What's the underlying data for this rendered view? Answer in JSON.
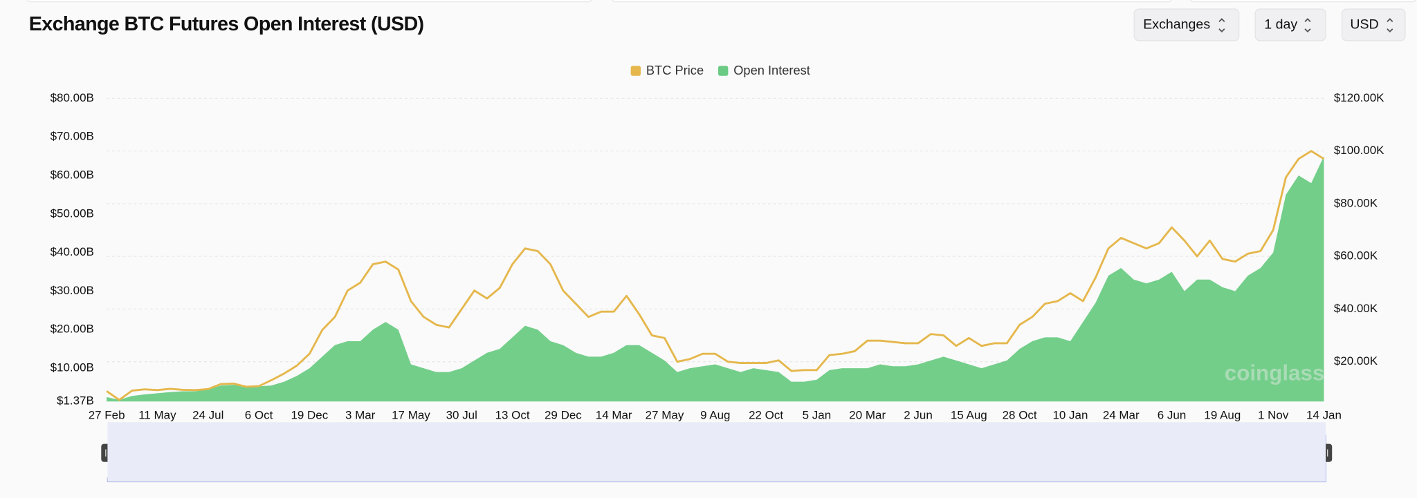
{
  "chart_data": {
    "type": "area-line",
    "title": "Exchange BTC Futures Open Interest (USD)",
    "controls": [
      "Exchanges",
      "1 day",
      "USD"
    ],
    "watermark": "coinglass",
    "categories": [
      "27 Feb",
      null,
      null,
      null,
      "11 May",
      null,
      null,
      null,
      "24 Jul",
      null,
      null,
      null,
      "6 Oct",
      null,
      null,
      null,
      "19 Dec",
      null,
      null,
      null,
      "3 Mar",
      null,
      null,
      null,
      "17 May",
      null,
      null,
      null,
      "30 Jul",
      null,
      null,
      null,
      "13 Oct",
      null,
      null,
      null,
      "29 Dec",
      null,
      null,
      null,
      "14 Mar",
      null,
      null,
      null,
      "27 May",
      null,
      null,
      null,
      "9 Aug",
      null,
      null,
      null,
      "22 Oct",
      null,
      null,
      null,
      "5 Jan",
      null,
      null,
      null,
      "20 Mar",
      null,
      null,
      null,
      "2 Jun",
      null,
      null,
      null,
      "15 Aug",
      null,
      null,
      null,
      "28 Oct",
      null,
      null,
      null,
      "10 Jan",
      null,
      null,
      null,
      "24 Mar",
      null,
      null,
      null,
      "6 Jun",
      null,
      null,
      null,
      "19 Aug",
      null,
      null,
      null,
      "1 Nov",
      null,
      null,
      null,
      "14 Jan"
    ],
    "series": [
      {
        "name": "BTC Price",
        "color": "#e5b74c",
        "axis": "y2",
        "kind": "line",
        "values": [
          8.8,
          5.5,
          9,
          9.5,
          9.2,
          9.7,
          9.3,
          9.2,
          9.6,
          11.5,
          11.7,
          10.5,
          10.7,
          13,
          15.5,
          18.5,
          23,
          32,
          37,
          47,
          50,
          57,
          58,
          55,
          43,
          37,
          34,
          33,
          40,
          47,
          44,
          48,
          57,
          63,
          62,
          57,
          47,
          42,
          37,
          39,
          39,
          45,
          38,
          30,
          29,
          20,
          21,
          23,
          23,
          20,
          19.5,
          19.5,
          19.5,
          20.5,
          16.5,
          16.8,
          16.8,
          22.5,
          23,
          24,
          28,
          28,
          27.5,
          27,
          27,
          30.5,
          30,
          26,
          29,
          26,
          27,
          27,
          34,
          37,
          42,
          43,
          46,
          43,
          52,
          63,
          67,
          65,
          63,
          65,
          71,
          66,
          60,
          66,
          59,
          58,
          61,
          62,
          70,
          90,
          97,
          100,
          97
        ]
      },
      {
        "name": "Open Interest",
        "color": "#6bcb84",
        "axis": "y",
        "kind": "area",
        "values": [
          2.5,
          1.8,
          2.8,
          3.2,
          3.5,
          3.8,
          4,
          4,
          4.5,
          5.5,
          5.7,
          5.3,
          5.3,
          5.5,
          6.5,
          8,
          10,
          13,
          16,
          17,
          17,
          20,
          22,
          20,
          11,
          10,
          9,
          9,
          10,
          12,
          14,
          15,
          18,
          21,
          20,
          17,
          16,
          14,
          13,
          13,
          14,
          16,
          16,
          14,
          12,
          9,
          10,
          10.5,
          11,
          10,
          9,
          10,
          9.5,
          9,
          6.5,
          6.5,
          7,
          9.5,
          10,
          10,
          10,
          11,
          10.5,
          10.5,
          11,
          12,
          13,
          12,
          11,
          10,
          11,
          12,
          15,
          17,
          18,
          18,
          17,
          22,
          27,
          34,
          36,
          33,
          32,
          33,
          35,
          30,
          33,
          33,
          31,
          30,
          34,
          36,
          40,
          55,
          60,
          58,
          65
        ]
      }
    ],
    "ylim": [
      1.37,
      80
    ],
    "yticks": [
      {
        "value": 1.37,
        "label": "$1.37B"
      },
      {
        "value": 10,
        "label": "$10.00B"
      },
      {
        "value": 20,
        "label": "$20.00B"
      },
      {
        "value": 30,
        "label": "$30.00B"
      },
      {
        "value": 40,
        "label": "$40.00B"
      },
      {
        "value": 50,
        "label": "$50.00B"
      },
      {
        "value": 60,
        "label": "$60.00B"
      },
      {
        "value": 70,
        "label": "$70.00B"
      },
      {
        "value": 80,
        "label": "$80.00B"
      }
    ],
    "y2lim": [
      4.9,
      120
    ],
    "y2ticks": [
      {
        "value": 20,
        "label": "$20.00K"
      },
      {
        "value": 40,
        "label": "$40.00K"
      },
      {
        "value": 60,
        "label": "$60.00K"
      },
      {
        "value": 80,
        "label": "$80.00K"
      },
      {
        "value": 100,
        "label": "$100.00K"
      },
      {
        "value": 120,
        "label": "$120.00K"
      }
    ],
    "grid": true,
    "legend": "top"
  }
}
